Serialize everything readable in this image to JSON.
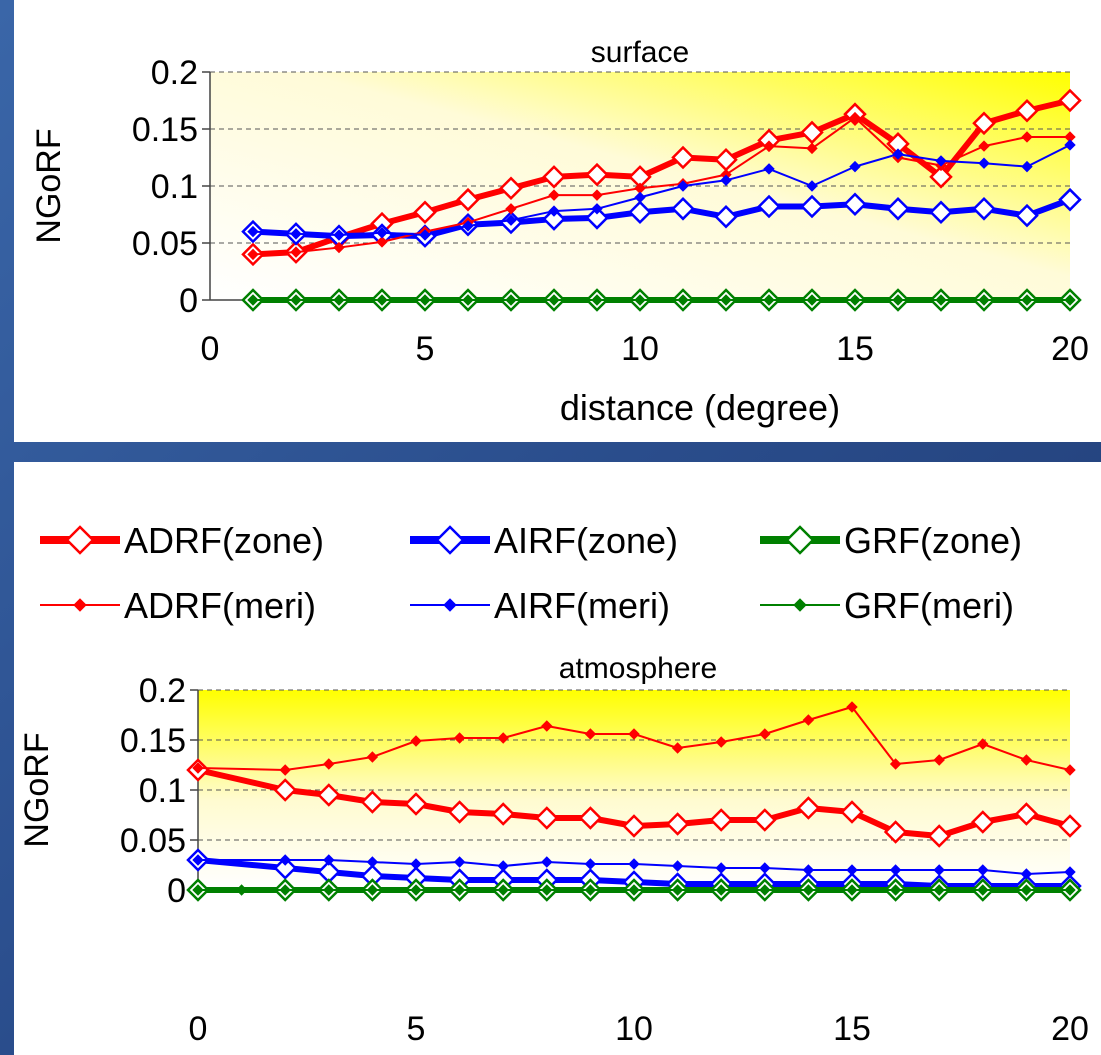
{
  "chart_data": [
    {
      "type": "line",
      "title": "surface",
      "xlabel": "distance (degree)",
      "ylabel": "NGoRF",
      "xlim": [
        0,
        20
      ],
      "ylim": [
        0,
        0.2
      ],
      "xticks": [
        0,
        5,
        10,
        15,
        20
      ],
      "yticks": [
        0,
        0.05,
        0.1,
        0.15,
        0.2
      ],
      "ytick_labels": [
        "0",
        "0.05",
        "0.1",
        "0.15",
        "0.2"
      ],
      "grid": "horizontal dashed",
      "series": [
        {
          "name": "ADRF(zone)",
          "color": "#ff0000",
          "style": "thick-open-diamond",
          "x": [
            1,
            2,
            3,
            4,
            5,
            6,
            7,
            8,
            9,
            10,
            11,
            12,
            13,
            14,
            15,
            16,
            17,
            18,
            19,
            20
          ],
          "values": [
            0.04,
            0.042,
            0.055,
            0.067,
            0.077,
            0.088,
            0.098,
            0.108,
            0.11,
            0.108,
            0.125,
            0.123,
            0.14,
            0.147,
            0.163,
            0.137,
            0.108,
            0.155,
            0.166,
            0.175
          ]
        },
        {
          "name": "AIRF(zone)",
          "color": "#0000ff",
          "style": "thick-open-diamond",
          "x": [
            1,
            2,
            3,
            4,
            5,
            6,
            7,
            8,
            9,
            10,
            11,
            12,
            13,
            14,
            15,
            16,
            17,
            18,
            19,
            20
          ],
          "values": [
            0.06,
            0.058,
            0.056,
            0.057,
            0.056,
            0.066,
            0.068,
            0.071,
            0.072,
            0.077,
            0.08,
            0.073,
            0.082,
            0.082,
            0.084,
            0.08,
            0.077,
            0.08,
            0.074,
            0.088
          ]
        },
        {
          "name": "GRF(zone)",
          "color": "#008000",
          "style": "thick-open-diamond",
          "x": [
            1,
            2,
            3,
            4,
            5,
            6,
            7,
            8,
            9,
            10,
            11,
            12,
            13,
            14,
            15,
            16,
            17,
            18,
            19,
            20
          ],
          "values": [
            0,
            0,
            0,
            0,
            0,
            0,
            0,
            0,
            0,
            0,
            0,
            0,
            0,
            0,
            0,
            0,
            0,
            0,
            0,
            0
          ]
        },
        {
          "name": "ADRF(meri)",
          "color": "#ff0000",
          "style": "thin-filled-diamond",
          "x": [
            1,
            2,
            3,
            4,
            5,
            6,
            7,
            8,
            9,
            10,
            11,
            12,
            13,
            14,
            15,
            16,
            17,
            18,
            19,
            20
          ],
          "values": [
            0.04,
            0.042,
            0.046,
            0.051,
            0.06,
            0.068,
            0.08,
            0.092,
            0.092,
            0.098,
            0.102,
            0.11,
            0.135,
            0.133,
            0.16,
            0.125,
            0.118,
            0.135,
            0.143,
            0.143
          ]
        },
        {
          "name": "AIRF(meri)",
          "color": "#0000ff",
          "style": "thin-filled-diamond",
          "x": [
            1,
            2,
            3,
            4,
            5,
            6,
            7,
            8,
            9,
            10,
            11,
            12,
            13,
            14,
            15,
            16,
            17,
            18,
            19,
            20
          ],
          "values": [
            0.06,
            0.058,
            0.057,
            0.059,
            0.057,
            0.065,
            0.07,
            0.078,
            0.08,
            0.09,
            0.1,
            0.105,
            0.115,
            0.1,
            0.117,
            0.128,
            0.122,
            0.12,
            0.117,
            0.136
          ]
        },
        {
          "name": "GRF(meri)",
          "color": "#008000",
          "style": "thin-filled-diamond",
          "x": [
            1,
            2,
            3,
            4,
            5,
            6,
            7,
            8,
            9,
            10,
            11,
            12,
            13,
            14,
            15,
            16,
            17,
            18,
            19,
            20
          ],
          "values": [
            0,
            0,
            0,
            0,
            0,
            0,
            0,
            0,
            0,
            0,
            0,
            0,
            0,
            0,
            0,
            0,
            0,
            0,
            0,
            0
          ]
        }
      ]
    },
    {
      "type": "line",
      "title": "atmosphere",
      "xlabel": "",
      "ylabel": "NGoRF",
      "xlim": [
        0,
        20
      ],
      "ylim": [
        0,
        0.2
      ],
      "xticks": [
        0,
        5,
        10,
        15,
        20
      ],
      "yticks": [
        0,
        0.05,
        0.1,
        0.15,
        0.2
      ],
      "ytick_labels": [
        "0",
        "0.05",
        "0.1",
        "0.15",
        "0.2"
      ],
      "grid": "horizontal dashed",
      "series": [
        {
          "name": "ADRF(zone)",
          "color": "#ff0000",
          "style": "thick-open-diamond",
          "x": [
            0,
            2,
            3,
            4,
            5,
            6,
            7,
            8,
            9,
            10,
            11,
            12,
            13,
            14,
            15,
            16,
            17,
            18,
            19,
            20
          ],
          "values": [
            0.12,
            0.1,
            0.095,
            0.088,
            0.086,
            0.078,
            0.076,
            0.072,
            0.072,
            0.064,
            0.066,
            0.07,
            0.07,
            0.082,
            0.078,
            0.058,
            0.054,
            0.068,
            0.076,
            0.064
          ]
        },
        {
          "name": "AIRF(zone)",
          "color": "#0000ff",
          "style": "thick-open-diamond",
          "x": [
            0,
            2,
            3,
            4,
            5,
            6,
            7,
            8,
            9,
            10,
            11,
            12,
            13,
            14,
            15,
            16,
            17,
            18,
            19,
            20
          ],
          "values": [
            0.03,
            0.022,
            0.018,
            0.014,
            0.012,
            0.01,
            0.01,
            0.01,
            0.01,
            0.008,
            0.006,
            0.006,
            0.006,
            0.006,
            0.006,
            0.006,
            0.004,
            0.004,
            0.004,
            0.004
          ]
        },
        {
          "name": "GRF(zone)",
          "color": "#008000",
          "style": "thick-open-diamond",
          "x": [
            0,
            2,
            3,
            4,
            5,
            6,
            7,
            8,
            9,
            10,
            11,
            12,
            13,
            14,
            15,
            16,
            17,
            18,
            19,
            20
          ],
          "values": [
            0,
            0,
            0,
            0,
            0,
            0,
            0,
            0,
            0,
            0,
            0,
            0,
            0,
            0,
            0,
            0,
            0,
            0,
            0,
            0
          ]
        },
        {
          "name": "ADRF(meri)",
          "color": "#ff0000",
          "style": "thin-filled-diamond",
          "x": [
            0,
            2,
            3,
            4,
            5,
            6,
            7,
            8,
            9,
            10,
            11,
            12,
            13,
            14,
            15,
            16,
            17,
            18,
            19,
            20
          ],
          "values": [
            0.122,
            0.12,
            0.126,
            0.133,
            0.149,
            0.152,
            0.152,
            0.164,
            0.156,
            0.156,
            0.142,
            0.148,
            0.156,
            0.17,
            0.183,
            0.126,
            0.13,
            0.146,
            0.13,
            0.12
          ]
        },
        {
          "name": "AIRF(meri)",
          "color": "#0000ff",
          "style": "thin-filled-diamond",
          "x": [
            0,
            2,
            3,
            4,
            5,
            6,
            7,
            8,
            9,
            10,
            11,
            12,
            13,
            14,
            15,
            16,
            17,
            18,
            19,
            20
          ],
          "values": [
            0.03,
            0.03,
            0.03,
            0.028,
            0.026,
            0.028,
            0.024,
            0.028,
            0.026,
            0.026,
            0.024,
            0.022,
            0.022,
            0.02,
            0.02,
            0.02,
            0.02,
            0.02,
            0.016,
            0.018
          ]
        },
        {
          "name": "GRF(meri)",
          "color": "#008000",
          "style": "thin-filled-diamond",
          "x": [
            0,
            1,
            2,
            3,
            4,
            5,
            6,
            7,
            8,
            9,
            10,
            11,
            12,
            13,
            14,
            15,
            16,
            17,
            18,
            19,
            20
          ],
          "values": [
            0,
            0,
            0,
            0,
            0,
            0,
            0,
            0,
            0,
            0,
            0,
            0,
            0,
            0,
            0,
            0,
            0,
            0,
            0,
            0,
            0
          ]
        }
      ]
    }
  ],
  "legend": {
    "placement": "between-charts",
    "items": [
      {
        "label": "ADRF(zone)",
        "color": "#ff0000",
        "style": "thick-open-diamond"
      },
      {
        "label": "AIRF(zone)",
        "color": "#0000ff",
        "style": "thick-open-diamond"
      },
      {
        "label": "GRF(zone)",
        "color": "#008000",
        "style": "thick-open-diamond"
      },
      {
        "label": "ADRF(meri)",
        "color": "#ff0000",
        "style": "thin-filled-diamond"
      },
      {
        "label": "AIRF(meri)",
        "color": "#0000ff",
        "style": "thin-filled-diamond"
      },
      {
        "label": "GRF(meri)",
        "color": "#008000",
        "style": "thin-filled-diamond"
      }
    ]
  }
}
